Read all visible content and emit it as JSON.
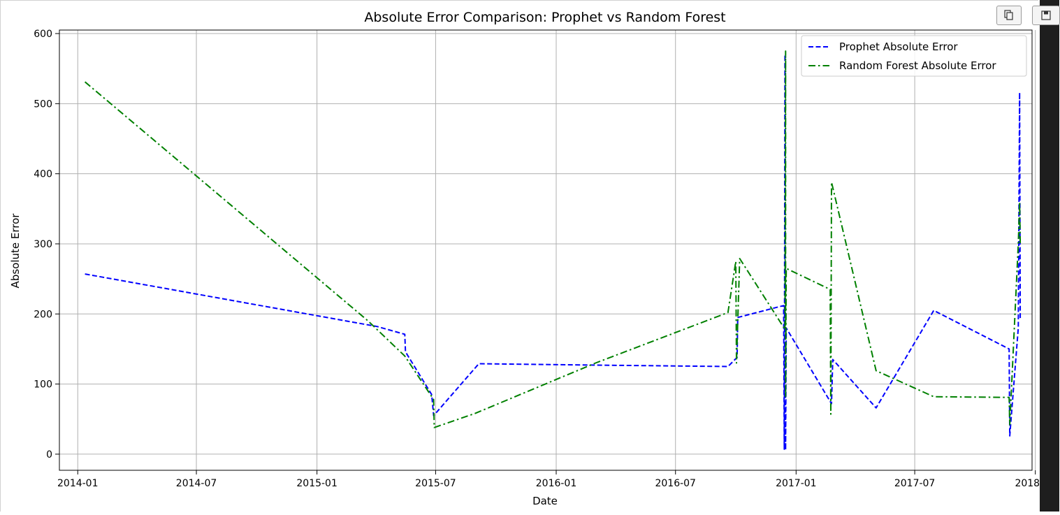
{
  "toolbar": {
    "copy_icon": "copy-icon",
    "save_icon": "save-icon"
  },
  "chart_data": {
    "type": "line",
    "title": "Absolute Error Comparison: Prophet vs Random Forest",
    "xlabel": "Date",
    "ylabel": "Absolute Error",
    "xlim": [
      "2013-12-04",
      "2017-12-27"
    ],
    "ylim": [
      -23,
      605
    ],
    "x_ticks": [
      "2014-01",
      "2014-07",
      "2015-01",
      "2015-07",
      "2016-01",
      "2016-07",
      "2017-01",
      "2017-07",
      "2018-01"
    ],
    "y_ticks": [
      0,
      100,
      200,
      300,
      400,
      500,
      600
    ],
    "grid": true,
    "legend_position": "upper right",
    "series": [
      {
        "name": "Prophet Absolute Error",
        "color": "#0000ff",
        "linestyle": "dashed",
        "points": [
          [
            "2014-01-12",
            257
          ],
          [
            "2015-04-03",
            182
          ],
          [
            "2015-05-15",
            171
          ],
          [
            "2015-05-16",
            146
          ],
          [
            "2015-06-25",
            85
          ],
          [
            "2015-06-28",
            55
          ],
          [
            "2015-09-05",
            129
          ],
          [
            "2016-03-01",
            127
          ],
          [
            "2016-09-19",
            125
          ],
          [
            "2016-10-03",
            138
          ],
          [
            "2016-10-04",
            195
          ],
          [
            "2016-12-13",
            212
          ],
          [
            "2016-12-14",
            7
          ],
          [
            "2016-12-15",
            570
          ],
          [
            "2016-12-16",
            6
          ],
          [
            "2016-12-17",
            180
          ],
          [
            "2017-02-24",
            72
          ],
          [
            "2017-02-26",
            135
          ],
          [
            "2017-05-03",
            66
          ],
          [
            "2017-07-30",
            205
          ],
          [
            "2017-11-22",
            150
          ],
          [
            "2017-11-23",
            26
          ],
          [
            "2017-12-06",
            180
          ],
          [
            "2017-12-08",
            516
          ],
          [
            "2017-12-09",
            193
          ]
        ]
      },
      {
        "name": "Random Forest Absolute Error",
        "color": "#008000",
        "linestyle": "dashdot",
        "points": [
          [
            "2014-01-12",
            531
          ],
          [
            "2015-03-20",
            190
          ],
          [
            "2015-05-15",
            140
          ],
          [
            "2015-06-28",
            78
          ],
          [
            "2015-06-29",
            38
          ],
          [
            "2015-08-30",
            58
          ],
          [
            "2016-03-01",
            130
          ],
          [
            "2016-09-19",
            202
          ],
          [
            "2016-10-01",
            275
          ],
          [
            "2016-10-02",
            130
          ],
          [
            "2016-10-07",
            279
          ],
          [
            "2016-12-15",
            178
          ],
          [
            "2016-12-16",
            575
          ],
          [
            "2016-12-16",
            80
          ],
          [
            "2016-12-17",
            265
          ],
          [
            "2017-02-22",
            235
          ],
          [
            "2017-02-23",
            57
          ],
          [
            "2017-02-24",
            388
          ],
          [
            "2017-05-03",
            119
          ],
          [
            "2017-07-30",
            82
          ],
          [
            "2017-11-22",
            81
          ],
          [
            "2017-11-23",
            42
          ],
          [
            "2017-12-06",
            300
          ],
          [
            "2017-12-08",
            360
          ],
          [
            "2017-12-09",
            300
          ]
        ]
      }
    ]
  }
}
